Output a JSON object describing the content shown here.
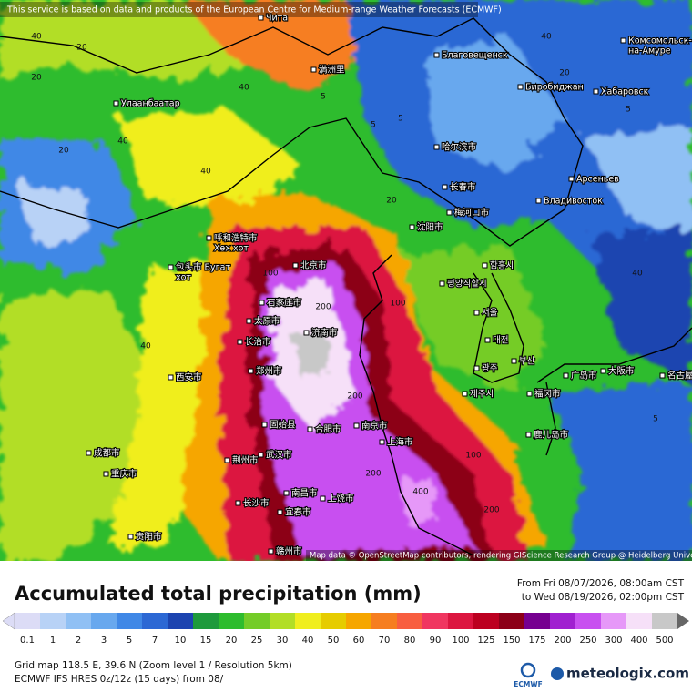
{
  "header": {
    "notice": "This service is based on data and products of the European Centre for Medium-range Weather Forecasts (ECMWF)"
  },
  "map": {
    "attribution": "Map data © OpenStreetMap contributors, rendering GIScience Research Group @ Heidelberg University",
    "cities": [
      {
        "lines": [
          "Чита"
        ]
      },
      {
        "lines": [
          "Улаанбаатар"
        ]
      },
      {
        "lines": [
          "満洲里"
        ]
      },
      {
        "lines": [
          "Благовещенск"
        ]
      },
      {
        "lines": [
          "Комсомольск-",
          "на-Амуре"
        ]
      },
      {
        "lines": [
          "Биробиджан"
        ]
      },
      {
        "lines": [
          "Хабаровск"
        ]
      },
      {
        "lines": [
          "哈尔滨市"
        ]
      },
      {
        "lines": [
          "Арсеньев"
        ]
      },
      {
        "lines": [
          "长春市"
        ]
      },
      {
        "lines": [
          "Владивосток"
        ]
      },
      {
        "lines": [
          "梅河口市"
        ]
      },
      {
        "lines": [
          "沈阳市"
        ]
      },
      {
        "lines": [
          "呼和浩特市",
          "Хөх хот"
        ]
      },
      {
        "lines": [
          "包头市 Бугат",
          "хот"
        ]
      },
      {
        "lines": [
          "北京市"
        ]
      },
      {
        "lines": [
          "함흥시"
        ]
      },
      {
        "lines": [
          "평양직할시"
        ]
      },
      {
        "lines": [
          "石家庄市"
        ]
      },
      {
        "lines": [
          "太原市"
        ]
      },
      {
        "lines": [
          "서울"
        ]
      },
      {
        "lines": [
          "济南市"
        ]
      },
      {
        "lines": [
          "대전"
        ]
      },
      {
        "lines": [
          "长治市"
        ]
      },
      {
        "lines": [
          "부산"
        ]
      },
      {
        "lines": [
          "广岛市"
        ]
      },
      {
        "lines": [
          "大阪市"
        ]
      },
      {
        "lines": [
          "名古屋"
        ]
      },
      {
        "lines": [
          "郑州市"
        ]
      },
      {
        "lines": [
          "西安市"
        ]
      },
      {
        "lines": [
          "광주"
        ]
      },
      {
        "lines": [
          "福冈市"
        ]
      },
      {
        "lines": [
          "제주시"
        ]
      },
      {
        "lines": [
          "鹿儿岛市"
        ]
      },
      {
        "lines": [
          "南京市"
        ]
      },
      {
        "lines": [
          "合肥市"
        ]
      },
      {
        "lines": [
          "固始县"
        ]
      },
      {
        "lines": [
          "成都市"
        ]
      },
      {
        "lines": [
          "上海市"
        ]
      },
      {
        "lines": [
          "武汉市"
        ]
      },
      {
        "lines": [
          "荆州市"
        ]
      },
      {
        "lines": [
          "重庆市"
        ]
      },
      {
        "lines": [
          "南昌市"
        ]
      },
      {
        "lines": [
          "长沙市"
        ]
      },
      {
        "lines": [
          "上饶市"
        ]
      },
      {
        "lines": [
          "宜春市"
        ]
      },
      {
        "lines": [
          "贵阳市"
        ]
      },
      {
        "lines": [
          "赣州市"
        ]
      }
    ],
    "contour_labels": [
      "40",
      "20",
      "20",
      "5",
      "5",
      "40",
      "40",
      "20",
      "5",
      "40",
      "20",
      "40",
      "100",
      "100",
      "200",
      "200",
      "200",
      "400",
      "200",
      "100",
      "40",
      "5",
      "5",
      "40",
      "20"
    ]
  },
  "legend": {
    "title": "Accumulated total precipitation (mm)",
    "period_from": "From Fri 08/07/2026, 08:00am CST",
    "period_to": "to Wed 08/19/2026, 02:00pm CST",
    "scale": [
      {
        "label": "0.1",
        "color": "#dcdcf6"
      },
      {
        "label": "1",
        "color": "#b8d2f6"
      },
      {
        "label": "2",
        "color": "#90c0f4"
      },
      {
        "label": "3",
        "color": "#68a8ee"
      },
      {
        "label": "5",
        "color": "#4088e6"
      },
      {
        "label": "7",
        "color": "#2c68d4"
      },
      {
        "label": "10",
        "color": "#1c44b0"
      },
      {
        "label": "15",
        "color": "#1e9a3c"
      },
      {
        "label": "20",
        "color": "#2ebc2e"
      },
      {
        "label": "25",
        "color": "#74cc28"
      },
      {
        "label": "30",
        "color": "#b2de26"
      },
      {
        "label": "40",
        "color": "#f0ee1e"
      },
      {
        "label": "50",
        "color": "#e6cc00"
      },
      {
        "label": "60",
        "color": "#f6a600"
      },
      {
        "label": "70",
        "color": "#f67e20"
      },
      {
        "label": "80",
        "color": "#f85e40"
      },
      {
        "label": "90",
        "color": "#f03660"
      },
      {
        "label": "100",
        "color": "#dc1640"
      },
      {
        "label": "125",
        "color": "#bc0020"
      },
      {
        "label": "150",
        "color": "#8c0018"
      },
      {
        "label": "175",
        "color": "#760090"
      },
      {
        "label": "200",
        "color": "#a020d0"
      },
      {
        "label": "250",
        "color": "#c850f0"
      },
      {
        "label": "300",
        "color": "#e698f8"
      },
      {
        "label": "400",
        "color": "#f6e0f8"
      },
      {
        "label": "500",
        "color": "#c8c8c8"
      }
    ]
  },
  "footer": {
    "grid_info": "Grid map 118.5 E, 39.6 N (Zoom level 1 / Resolution 5km)",
    "model_info": "ECMWF IFS HRES 0z/12z (15 days) from 08/",
    "ecmwf_logo": "ECMWF",
    "brand": "meteologix.com"
  }
}
